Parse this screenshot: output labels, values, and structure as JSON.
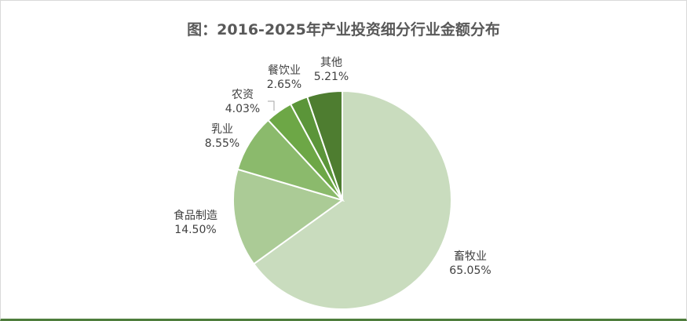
{
  "chart_data": {
    "type": "pie",
    "title": "图：2016-2025年产业投资细分行业金额分布",
    "slices": [
      {
        "label": "畜牧业",
        "percent_label": "65.05%",
        "value": 65.05,
        "color": "#c9dcbe"
      },
      {
        "label": "食品制造",
        "percent_label": "14.50%",
        "value": 14.5,
        "color": "#abcb96"
      },
      {
        "label": "乳业",
        "percent_label": "8.55%",
        "value": 8.55,
        "color": "#8bba6c"
      },
      {
        "label": "农资",
        "percent_label": "4.03%",
        "value": 4.03,
        "color": "#6da746"
      },
      {
        "label": "餐饮业",
        "percent_label": "2.65%",
        "value": 2.65,
        "color": "#5b9539"
      },
      {
        "label": "其他",
        "percent_label": "5.21%",
        "value": 5.21,
        "color": "#4e7d30"
      }
    ],
    "start": "12 o'clock, clockwise",
    "legend": "none (data labels outside slices)"
  }
}
